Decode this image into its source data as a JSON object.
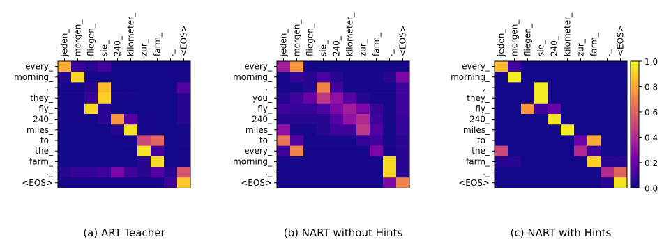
{
  "colormap": "plasma",
  "colors": {
    "plasma": [
      "#0d0887",
      "#46039f",
      "#7201a8",
      "#9c179e",
      "#bd3786",
      "#d8576b",
      "#ed7953",
      "#fb9f3a",
      "#fdca26",
      "#f0f921"
    ]
  },
  "chart_data": [
    {
      "type": "heatmap",
      "title": "(a) ART Teacher",
      "xlabels": [
        "jeden_",
        "morgen_",
        "fliegen_",
        "sie_",
        "240_",
        "kilometer_",
        "zur_",
        "farm_",
        "._",
        "<EOS>"
      ],
      "ylabels": [
        "every_",
        "morning_",
        ",_",
        "they_",
        "fly_",
        "240_",
        "miles_",
        "to_",
        "the_",
        "farm_",
        "._",
        "<EOS>"
      ],
      "values": [
        [
          0.82,
          0.08,
          0.05,
          0.1,
          0.02,
          0.02,
          0.02,
          0.02,
          0.02,
          0.02
        ],
        [
          0.05,
          0.92,
          0.02,
          0.02,
          0.01,
          0.01,
          0.01,
          0.01,
          0.01,
          0.02
        ],
        [
          0.02,
          0.02,
          0.05,
          0.85,
          0.01,
          0.01,
          0.01,
          0.01,
          0.01,
          0.15
        ],
        [
          0.02,
          0.02,
          0.08,
          0.9,
          0.02,
          0.02,
          0.01,
          0.01,
          0.01,
          0.05
        ],
        [
          0.02,
          0.02,
          0.92,
          0.05,
          0.01,
          0.01,
          0.01,
          0.01,
          0.01,
          0.05
        ],
        [
          0.02,
          0.02,
          0.02,
          0.05,
          0.75,
          0.15,
          0.02,
          0.02,
          0.01,
          0.05
        ],
        [
          0.01,
          0.01,
          0.01,
          0.01,
          0.05,
          0.95,
          0.02,
          0.02,
          0.01,
          0.02
        ],
        [
          0.01,
          0.01,
          0.01,
          0.01,
          0.01,
          0.02,
          0.5,
          0.6,
          0.01,
          0.02
        ],
        [
          0.01,
          0.01,
          0.01,
          0.01,
          0.01,
          0.01,
          0.95,
          0.1,
          0.01,
          0.02
        ],
        [
          0.01,
          0.01,
          0.01,
          0.01,
          0.01,
          0.01,
          0.05,
          0.93,
          0.01,
          0.02
        ],
        [
          0.05,
          0.08,
          0.08,
          0.1,
          0.25,
          0.1,
          0.05,
          0.15,
          0.05,
          0.55
        ],
        [
          0.02,
          0.02,
          0.02,
          0.02,
          0.02,
          0.02,
          0.02,
          0.02,
          0.1,
          0.88
        ]
      ]
    },
    {
      "type": "heatmap",
      "title": "(b) NART without Hints",
      "xlabels": [
        "jeden_",
        "morgen_",
        "fliegen_",
        "sie_",
        "240_",
        "kilometer_",
        "zur_",
        "farm_",
        "._",
        "<EOS>"
      ],
      "ylabels": [
        "every_",
        "morning_",
        ",_",
        "you_",
        "fly_",
        "240_",
        "miles_",
        "to_",
        "every_",
        "morning_",
        "._",
        "<EOS>"
      ],
      "values": [
        [
          0.35,
          0.75,
          0.02,
          0.02,
          0.02,
          0.02,
          0.02,
          0.02,
          0.02,
          0.02
        ],
        [
          0.02,
          0.08,
          0.05,
          0.12,
          0.05,
          0.02,
          0.02,
          0.02,
          0.05,
          0.25
        ],
        [
          0.02,
          0.02,
          0.05,
          0.7,
          0.1,
          0.02,
          0.02,
          0.02,
          0.02,
          0.1
        ],
        [
          0.05,
          0.1,
          0.2,
          0.45,
          0.3,
          0.15,
          0.05,
          0.02,
          0.02,
          0.1
        ],
        [
          0.1,
          0.08,
          0.08,
          0.12,
          0.25,
          0.35,
          0.25,
          0.08,
          0.02,
          0.1
        ],
        [
          0.05,
          0.05,
          0.05,
          0.05,
          0.15,
          0.3,
          0.4,
          0.1,
          0.02,
          0.08
        ],
        [
          0.3,
          0.02,
          0.02,
          0.05,
          0.1,
          0.1,
          0.45,
          0.15,
          0.02,
          0.08
        ],
        [
          0.65,
          0.15,
          0.02,
          0.02,
          0.02,
          0.02,
          0.08,
          0.1,
          0.02,
          0.05
        ],
        [
          0.1,
          0.7,
          0.02,
          0.02,
          0.02,
          0.02,
          0.02,
          0.25,
          0.02,
          0.05
        ],
        [
          0.02,
          0.02,
          0.02,
          0.02,
          0.02,
          0.02,
          0.02,
          0.02,
          0.92,
          0.05
        ],
        [
          0.02,
          0.02,
          0.02,
          0.02,
          0.02,
          0.02,
          0.02,
          0.02,
          0.92,
          0.05
        ],
        [
          0.02,
          0.02,
          0.02,
          0.02,
          0.02,
          0.02,
          0.02,
          0.02,
          0.25,
          0.7
        ]
      ]
    },
    {
      "type": "heatmap",
      "title": "(c) NART with Hints",
      "xlabels": [
        "jeden_",
        "morgen_",
        "fliegen_",
        "sie_",
        "240_",
        "kilometer_",
        "zur_",
        "farm_",
        "._",
        "<EOS>"
      ],
      "ylabels": [
        "every_",
        "morning_",
        ",_",
        "they_",
        "fly_",
        "240_",
        "miles_",
        "to_",
        "the_",
        "farm_",
        "._",
        "<EOS>"
      ],
      "values": [
        [
          0.85,
          0.1,
          0.02,
          0.02,
          0.01,
          0.01,
          0.01,
          0.01,
          0.01,
          0.01
        ],
        [
          0.02,
          0.97,
          0.01,
          0.01,
          0.01,
          0.01,
          0.01,
          0.01,
          0.01,
          0.01
        ],
        [
          0.01,
          0.01,
          0.01,
          0.97,
          0.01,
          0.01,
          0.01,
          0.01,
          0.01,
          0.01
        ],
        [
          0.01,
          0.01,
          0.01,
          0.97,
          0.01,
          0.01,
          0.01,
          0.01,
          0.01,
          0.01
        ],
        [
          0.01,
          0.01,
          0.75,
          0.1,
          0.2,
          0.01,
          0.01,
          0.01,
          0.01,
          0.01
        ],
        [
          0.01,
          0.01,
          0.01,
          0.01,
          0.95,
          0.01,
          0.01,
          0.01,
          0.01,
          0.01
        ],
        [
          0.01,
          0.01,
          0.01,
          0.01,
          0.01,
          0.97,
          0.01,
          0.01,
          0.01,
          0.01
        ],
        [
          0.01,
          0.01,
          0.01,
          0.01,
          0.01,
          0.01,
          0.2,
          0.8,
          0.01,
          0.01
        ],
        [
          0.5,
          0.01,
          0.01,
          0.01,
          0.01,
          0.01,
          0.4,
          0.1,
          0.01,
          0.01
        ],
        [
          0.05,
          0.05,
          0.01,
          0.01,
          0.01,
          0.01,
          0.01,
          0.9,
          0.05,
          0.05
        ],
        [
          0.01,
          0.01,
          0.01,
          0.01,
          0.01,
          0.01,
          0.01,
          0.01,
          0.4,
          0.6
        ],
        [
          0.01,
          0.01,
          0.01,
          0.01,
          0.01,
          0.01,
          0.01,
          0.01,
          0.05,
          0.95
        ]
      ]
    }
  ],
  "colorbar": {
    "range": [
      0.0,
      1.0
    ],
    "ticks": [
      "0.0",
      "0.2",
      "0.4",
      "0.6",
      "0.8",
      "1.0"
    ]
  }
}
